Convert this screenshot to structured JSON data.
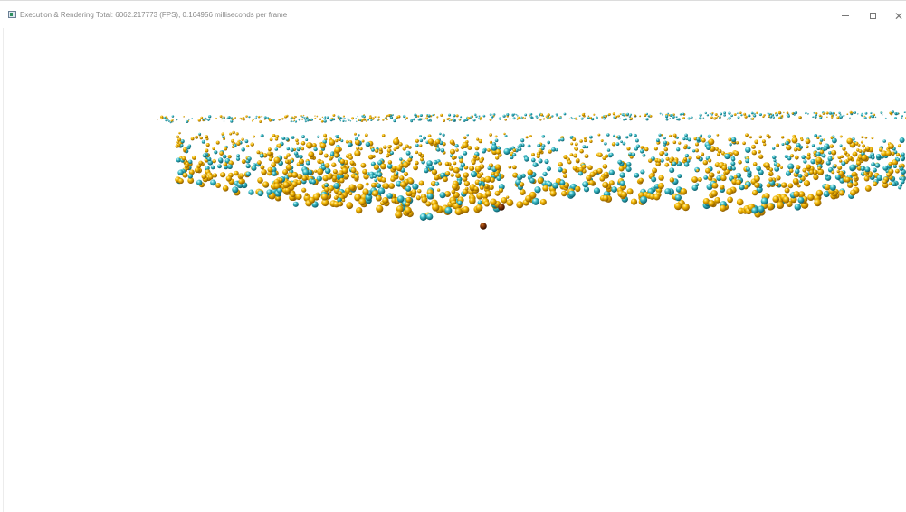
{
  "window": {
    "title": "Execution & Rendering Total: 6062.217773 (FPS), 0.164956 milliseconds per frame",
    "icon": "application-icon",
    "controls": {
      "minimize": "minimize-icon",
      "maximize": "maximize-icon",
      "close": "close-icon"
    }
  },
  "scene": {
    "background": "#ffffff",
    "colors": {
      "gold": "#f2b600",
      "teal": "#37b8c4",
      "bronze": "#8a3a0a"
    }
  }
}
